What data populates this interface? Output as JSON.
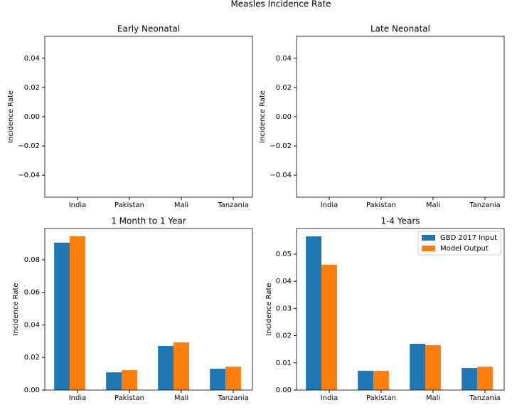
{
  "title": "Measles Incidence Rate",
  "chart_data": [
    {
      "type": "bar",
      "title": "Early Neonatal",
      "y_label": "Incidence Rate",
      "categories": [
        "India",
        "Pakistan",
        "Mali",
        "Tanzania"
      ],
      "series": [
        {
          "color": "#1f77b4",
          "values": [
            0,
            0,
            0,
            0
          ]
        },
        {
          "color": "#ff7f0e",
          "values": [
            0,
            0,
            0,
            0
          ]
        }
      ],
      "ylim": [
        -0.055,
        0.055
      ],
      "yticks": [
        {
          "value": -0.04,
          "label": "−0.04"
        },
        {
          "value": -0.02,
          "label": "−0.02"
        },
        {
          "value": 0,
          "label": "0.00"
        },
        0.02,
        0.04
      ]
    },
    {
      "type": "bar",
      "title": "Late Neonatal",
      "y_label": "Incidence Rate",
      "categories": [
        "India",
        "Pakistan",
        "Mali",
        "Tanzania"
      ],
      "series": [
        {
          "color": "#1f77b4",
          "values": [
            0,
            0,
            0,
            0
          ]
        },
        {
          "color": "#ff7f0e",
          "values": [
            0,
            0,
            0,
            0
          ]
        }
      ],
      "ylim": [
        -0.055,
        0.055
      ],
      "yticks": [
        {
          "value": -0.04,
          "label": "−0.04"
        },
        {
          "value": -0.02,
          "label": "−0.02"
        },
        {
          "value": 0,
          "label": "0.00"
        },
        0.02,
        0.04
      ]
    },
    {
      "type": "bar",
      "title": "1 Month to 1 Year",
      "y_label": "Incidence Rate",
      "categories": [
        "India",
        "Pakistan",
        "Mali",
        "Tanzania"
      ],
      "series": [
        {
          "color": "#1f77b4",
          "values": [
            0.0905,
            0.0109,
            0.0271,
            0.0131
          ]
        },
        {
          "color": "#ff7f0e",
          "values": [
            0.0944,
            0.0122,
            0.0293,
            0.0144
          ]
        }
      ],
      "ylim": [
        0,
        0.0992
      ],
      "yticks": [
        {
          "value": 0,
          "label": "0.00"
        },
        0.02,
        0.04,
        0.06,
        0.08
      ]
    },
    {
      "type": "bar",
      "title": "1-4 Years",
      "y_label": "Incidence Rate",
      "categories": [
        "India",
        "Pakistan",
        "Mali",
        "Tanzania"
      ],
      "series": [
        {
          "name": "GBD 2017 Input",
          "color": "#1f77b4",
          "values": [
            0.0565,
            0.0071,
            0.017,
            0.0081
          ]
        },
        {
          "name": "Model Output",
          "color": "#ff7f0e",
          "values": [
            0.0461,
            0.0071,
            0.0165,
            0.0086
          ]
        }
      ],
      "ylim": [
        0,
        0.0594
      ],
      "yticks": [
        {
          "value": 0,
          "label": "0.00"
        },
        0.01,
        0.02,
        0.03,
        0.04,
        0.05
      ],
      "legend": "upper right"
    }
  ]
}
